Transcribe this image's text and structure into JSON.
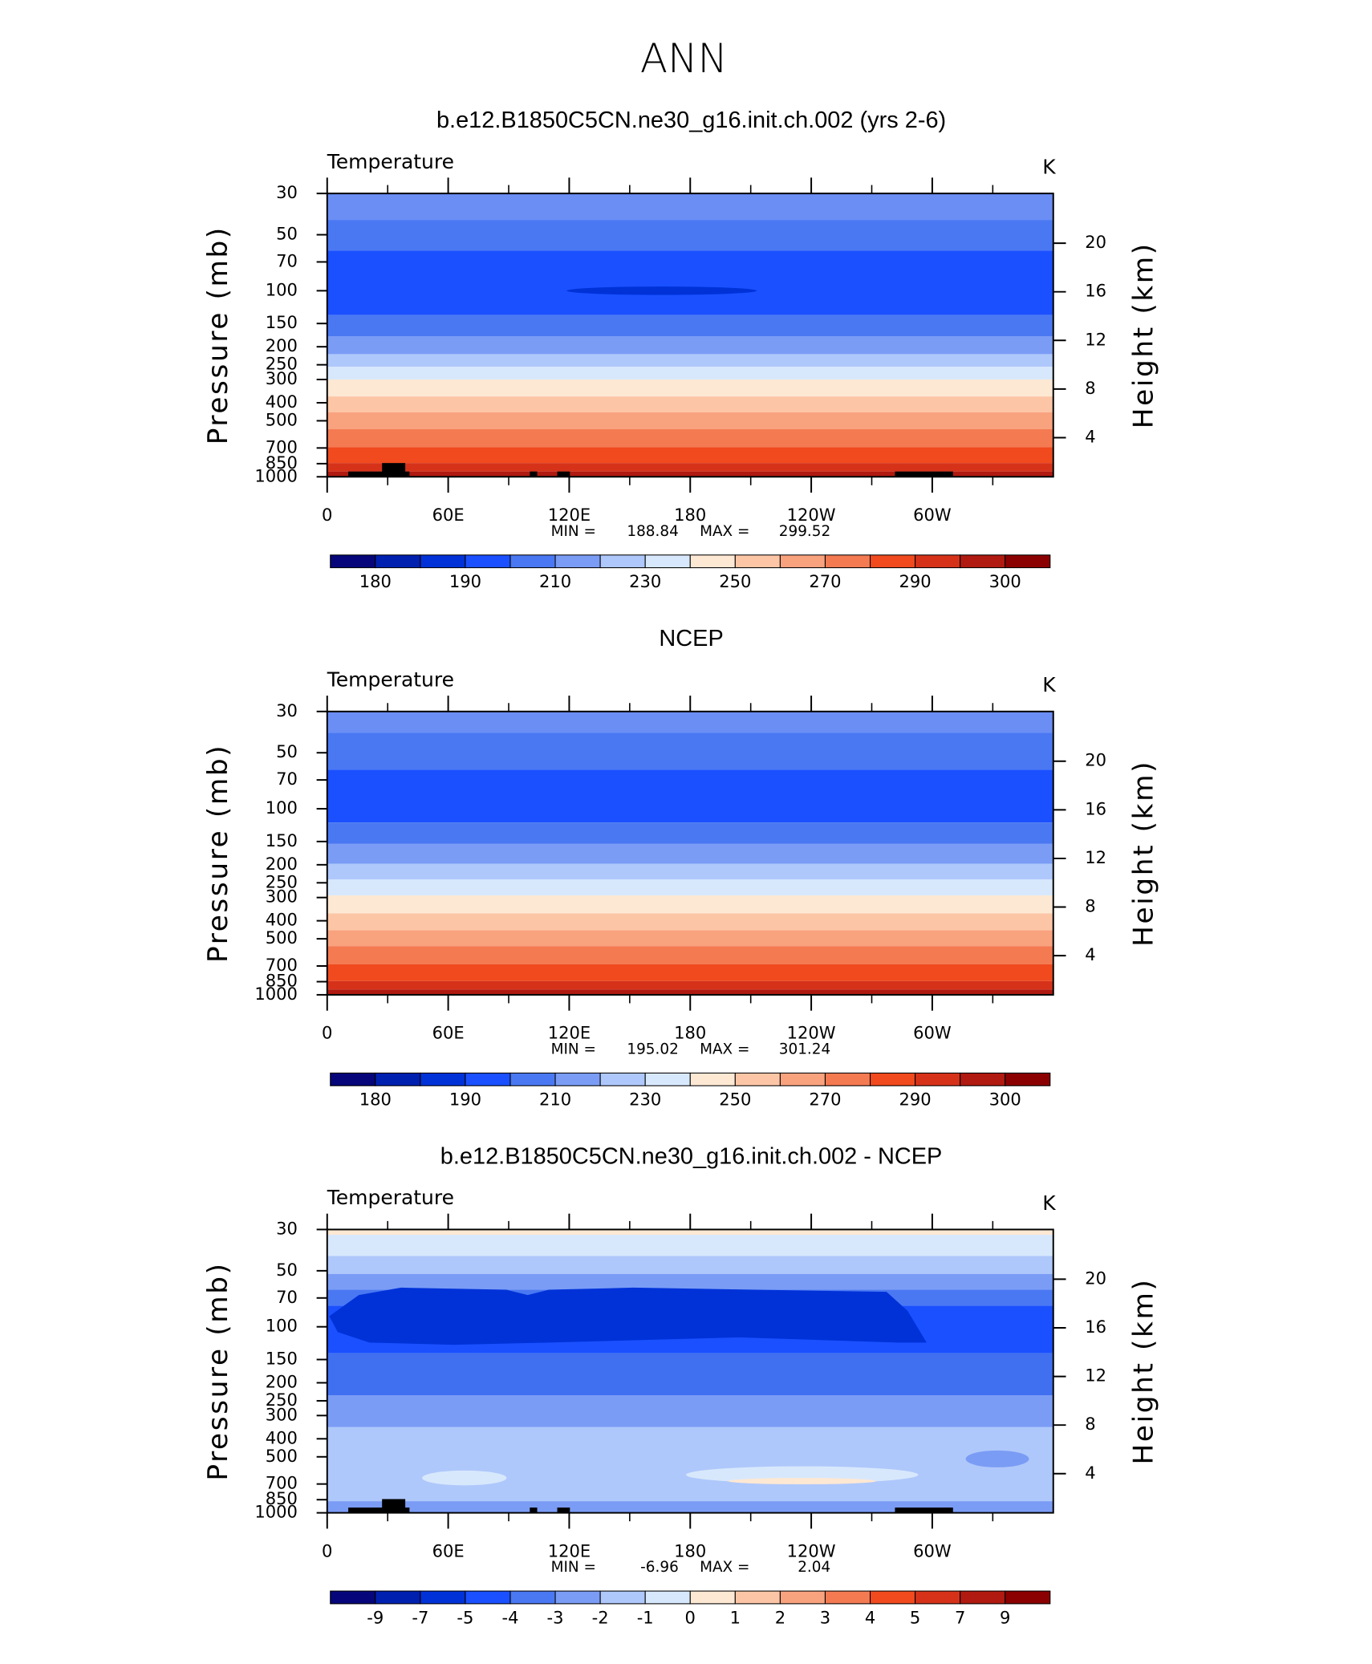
{
  "suptitle": "ANN",
  "chart_data": [
    {
      "type": "contour",
      "title": "b.e12.B1850C5CN.ne30_g16.init.ch.002 (yrs 2-6)",
      "left_title": "Temperature",
      "right_title": "K",
      "ylabel": "Pressure (mb)",
      "y2label": "Height (km)",
      "xlim": [
        0,
        360
      ],
      "xticks": [
        0,
        {
          "value": 60,
          "label": "60E"
        },
        {
          "value": 120,
          "label": "120E"
        },
        180,
        {
          "value": 240,
          "label": "120W"
        },
        {
          "value": 300,
          "label": "60W"
        }
      ],
      "x_minor_ticks": [
        30,
        90,
        150,
        210,
        270,
        330
      ],
      "ylim": [
        1000,
        30
      ],
      "yscale": "log",
      "yticks": [
        30,
        50,
        70,
        100,
        150,
        200,
        250,
        300,
        400,
        500,
        700,
        850,
        1000
      ],
      "y2lim": [
        0.78,
        24.09
      ],
      "y2ticks": [
        4,
        8,
        12,
        16,
        20
      ],
      "min_label": "MIN =",
      "min": 188.84,
      "max_label": "MAX =",
      "max": 299.52,
      "colorbar": {
        "colors": [
          "#06067a",
          "#0020b0",
          "#0032d8",
          "#1a50ff",
          "#4a78f2",
          "#7a9cf5",
          "#afc8fb",
          "#d8e8fc",
          "#fde8d3",
          "#fcc6a6",
          "#f9a27e",
          "#f47a52",
          "#f04a1e",
          "#d6321a",
          "#b01a10",
          "#8b0000"
        ],
        "levels": [
          180,
          null,
          190,
          null,
          210,
          null,
          230,
          null,
          250,
          null,
          270,
          null,
          290,
          null,
          300
        ]
      }
    },
    {
      "type": "contour",
      "title": "NCEP",
      "left_title": "Temperature",
      "right_title": "K",
      "ylabel": "Pressure (mb)",
      "y2label": "Height (km)",
      "xlim": [
        0,
        360
      ],
      "xticks": [
        0,
        {
          "value": 60,
          "label": "60E"
        },
        {
          "value": 120,
          "label": "120E"
        },
        180,
        {
          "value": 240,
          "label": "120W"
        },
        {
          "value": 300,
          "label": "60W"
        }
      ],
      "x_minor_ticks": [
        30,
        90,
        150,
        210,
        270,
        330
      ],
      "ylim": [
        1000,
        30
      ],
      "yscale": "log",
      "yticks": [
        30,
        50,
        70,
        100,
        150,
        200,
        250,
        300,
        400,
        500,
        700,
        850,
        1000
      ],
      "y2lim": [
        0.78,
        24.09
      ],
      "y2ticks": [
        4,
        8,
        12,
        16,
        20
      ],
      "min_label": "MIN =",
      "min": 195.02,
      "max_label": "MAX =",
      "max": 301.24,
      "colorbar": {
        "colors": [
          "#06067a",
          "#0020b0",
          "#0032d8",
          "#1a50ff",
          "#4a78f2",
          "#7a9cf5",
          "#afc8fb",
          "#d8e8fc",
          "#fde8d3",
          "#fcc6a6",
          "#f9a27e",
          "#f47a52",
          "#f04a1e",
          "#d6321a",
          "#b01a10",
          "#8b0000"
        ],
        "levels": [
          180,
          null,
          190,
          null,
          210,
          null,
          230,
          null,
          250,
          null,
          270,
          null,
          290,
          null,
          300
        ]
      }
    },
    {
      "type": "contour",
      "title": "b.e12.B1850C5CN.ne30_g16.init.ch.002 - NCEP",
      "left_title": "Temperature",
      "right_title": "K",
      "ylabel": "Pressure (mb)",
      "y2label": "Height (km)",
      "xlim": [
        0,
        360
      ],
      "xticks": [
        0,
        {
          "value": 60,
          "label": "60E"
        },
        {
          "value": 120,
          "label": "120E"
        },
        180,
        {
          "value": 240,
          "label": "120W"
        },
        {
          "value": 300,
          "label": "60W"
        }
      ],
      "x_minor_ticks": [
        30,
        90,
        150,
        210,
        270,
        330
      ],
      "ylim": [
        1000,
        30
      ],
      "yscale": "log",
      "yticks": [
        30,
        50,
        70,
        100,
        150,
        200,
        250,
        300,
        400,
        500,
        700,
        850,
        1000
      ],
      "y2lim": [
        0.78,
        24.09
      ],
      "y2ticks": [
        4,
        8,
        12,
        16,
        20
      ],
      "min_label": "MIN =",
      "min": -6.96,
      "max_label": "MAX =",
      "max": 2.04,
      "colorbar": {
        "colors": [
          "#06067a",
          "#0020b0",
          "#0032d8",
          "#1a50ff",
          "#4a78f2",
          "#7a9cf5",
          "#afc8fb",
          "#d8e8fc",
          "#fde8d3",
          "#fcc6a6",
          "#f9a27e",
          "#f47a52",
          "#f04a1e",
          "#d6321a",
          "#b01a10",
          "#8b0000"
        ],
        "levels": [
          -9,
          -7,
          -5,
          -4,
          -3,
          -2,
          -1,
          0,
          1,
          2,
          3,
          4,
          5,
          7,
          9
        ]
      }
    }
  ]
}
